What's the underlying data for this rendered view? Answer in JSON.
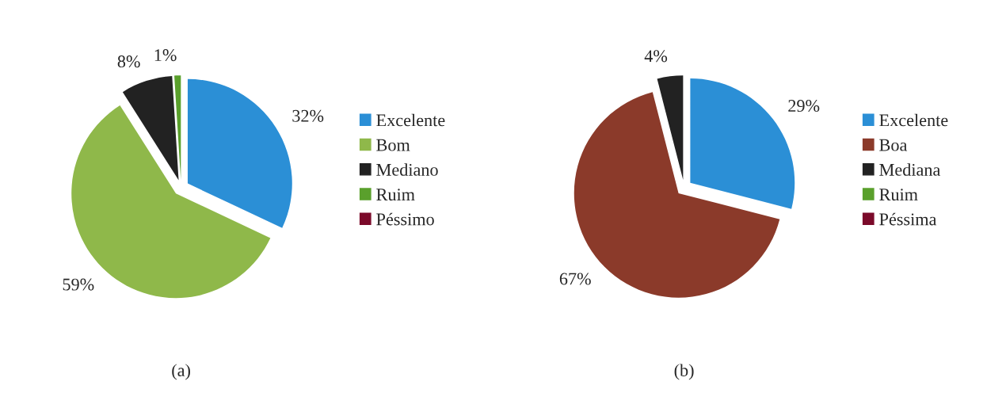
{
  "chart_data": [
    {
      "type": "pie",
      "title": "(a)",
      "categories": [
        "Excelente",
        "Bom",
        "Mediano",
        "Ruim",
        "Péssimo"
      ],
      "values": [
        32,
        59,
        8,
        1,
        0
      ],
      "colors": [
        "#2b8fd6",
        "#8fb84a",
        "#222222",
        "#5aa02c",
        "#7b0a2a"
      ],
      "value_labels": [
        "32%",
        "59%",
        "8%",
        "1%",
        null
      ],
      "legend": "right"
    },
    {
      "type": "pie",
      "title": "(b)",
      "categories": [
        "Excelente",
        "Boa",
        "Mediana",
        "Ruim",
        "Péssima"
      ],
      "values": [
        29,
        67,
        4,
        0,
        0
      ],
      "colors": [
        "#2b8fd6",
        "#8b3a2a",
        "#222222",
        "#5aa02c",
        "#7b0a2a"
      ],
      "value_labels": [
        "29%",
        "67%",
        "4%",
        null,
        null
      ],
      "legend": "right"
    }
  ]
}
